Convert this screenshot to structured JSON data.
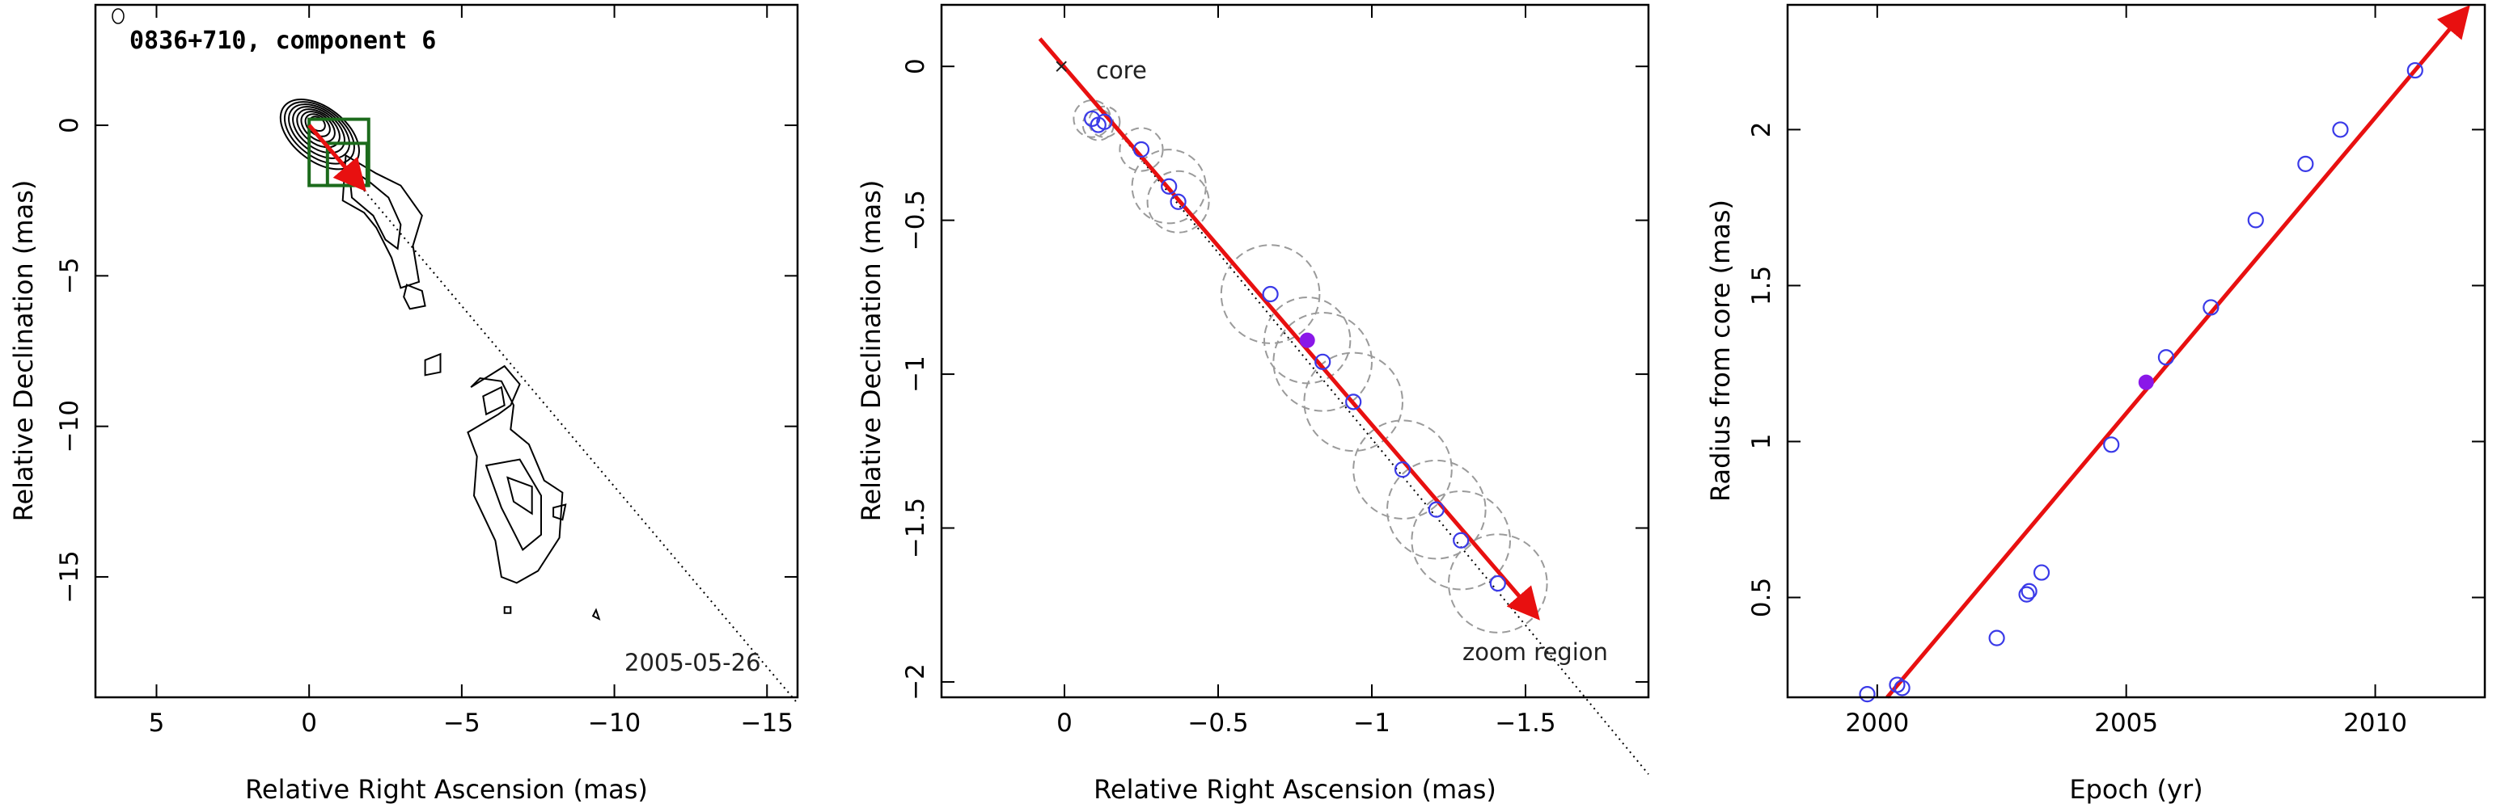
{
  "colors": {
    "fit_arrow": "#e81010",
    "open_point": "#3a3ae8",
    "filled_point": "#8a18e8",
    "component_box": "#1c6b1c",
    "ring": "#9a9a9a"
  },
  "chart_data": [
    {
      "type": "contour",
      "title": "0836+710, component 6",
      "xlabel": "Relative Right Ascension (mas)",
      "ylabel": "Relative Declination (mas)",
      "xlim": [
        7,
        -16
      ],
      "ylim": [
        -19,
        4
      ],
      "x_ticks": [
        5,
        0,
        -5,
        -10,
        -15
      ],
      "y_ticks": [
        0,
        -5,
        -10,
        -15
      ],
      "x_tick_labels": [
        "5",
        "0",
        "−5",
        "−10",
        "−15"
      ],
      "y_tick_labels": [
        "0",
        "−5",
        "−10",
        "−15"
      ],
      "annotations": [
        "2005-05-26"
      ],
      "trajectory_line": {
        "from": [
          0,
          0
        ],
        "to": [
          -16,
          -19.2
        ]
      },
      "fit_arrow": {
        "from": [
          0,
          0
        ],
        "to": [
          -1.7,
          -2.0
        ]
      },
      "zoom_box": {
        "x": [
          0,
          -1.95
        ],
        "y": [
          0.2,
          -2.0
        ]
      },
      "component_box": {
        "x": [
          -0.6,
          -1.9
        ],
        "y": [
          -0.6,
          -2.0
        ]
      },
      "jet_contours": [
        [
          [
            -1.2,
            -1.0
          ],
          [
            -2.2,
            -1.6
          ],
          [
            -3.0,
            -2.0
          ],
          [
            -3.7,
            -3.0
          ],
          [
            -3.4,
            -4.0
          ],
          [
            -3.6,
            -5.2
          ],
          [
            -3.0,
            -5.4
          ],
          [
            -2.7,
            -4.4
          ],
          [
            -2.2,
            -3.4
          ],
          [
            -1.8,
            -2.9
          ],
          [
            -1.1,
            -2.5
          ]
        ],
        [
          [
            -1.3,
            -1.4
          ],
          [
            -2.0,
            -1.9
          ],
          [
            -2.6,
            -2.4
          ],
          [
            -3.0,
            -3.3
          ],
          [
            -2.9,
            -4.1
          ],
          [
            -2.5,
            -3.8
          ],
          [
            -2.1,
            -3.0
          ],
          [
            -1.4,
            -2.4
          ]
        ],
        [
          [
            -3.2,
            -5.3
          ],
          [
            -3.7,
            -5.5
          ],
          [
            -3.8,
            -6.0
          ],
          [
            -3.3,
            -6.1
          ],
          [
            -3.1,
            -5.7
          ]
        ],
        [
          [
            -5.3,
            -8.7
          ],
          [
            -6.4,
            -8.0
          ],
          [
            -6.9,
            -8.6
          ],
          [
            -6.6,
            -9.3
          ],
          [
            -6.2,
            -9.6
          ],
          [
            -5.2,
            -10.2
          ],
          [
            -5.5,
            -11.0
          ],
          [
            -5.4,
            -12.3
          ],
          [
            -6.1,
            -13.8
          ],
          [
            -6.3,
            -15.0
          ],
          [
            -6.8,
            -15.2
          ],
          [
            -7.5,
            -14.8
          ],
          [
            -8.2,
            -13.7
          ],
          [
            -8.3,
            -12.2
          ],
          [
            -7.7,
            -11.8
          ],
          [
            -7.2,
            -10.6
          ],
          [
            -6.6,
            -10.1
          ],
          [
            -6.7,
            -9.3
          ],
          [
            -6.3,
            -8.5
          ],
          [
            -5.6,
            -8.4
          ]
        ],
        [
          [
            -5.7,
            -9.0
          ],
          [
            -6.3,
            -8.7
          ],
          [
            -6.4,
            -9.3
          ],
          [
            -5.8,
            -9.6
          ]
        ],
        [
          [
            -5.8,
            -11.3
          ],
          [
            -6.9,
            -11.1
          ],
          [
            -7.6,
            -12.3
          ],
          [
            -7.6,
            -13.6
          ],
          [
            -7.0,
            -14.1
          ],
          [
            -6.3,
            -12.7
          ]
        ],
        [
          [
            -6.5,
            -11.7
          ],
          [
            -7.3,
            -12.0
          ],
          [
            -7.3,
            -12.9
          ],
          [
            -6.7,
            -12.5
          ]
        ],
        [
          [
            -3.8,
            -7.8
          ],
          [
            -4.3,
            -7.6
          ],
          [
            -4.3,
            -8.2
          ],
          [
            -3.8,
            -8.3
          ]
        ],
        [
          [
            -8.0,
            -12.7
          ],
          [
            -8.4,
            -12.6
          ],
          [
            -8.3,
            -13.1
          ],
          [
            -8.0,
            -13.0
          ]
        ],
        [
          [
            -6.4,
            -16.2
          ],
          [
            -6.6,
            -16.2
          ],
          [
            -6.6,
            -16.0
          ],
          [
            -6.4,
            -16.0
          ]
        ],
        [
          [
            -9.3,
            -16.3
          ],
          [
            -9.5,
            -16.4
          ],
          [
            -9.4,
            -16.1
          ]
        ]
      ]
    },
    {
      "type": "scatter",
      "xlabel": "Relative Right Ascension (mas)",
      "ylabel": "Relative Declination (mas)",
      "xlim": [
        0.4,
        -1.9
      ],
      "ylim": [
        -2.05,
        0.2
      ],
      "x_ticks": [
        0,
        -0.5,
        -1,
        -1.5
      ],
      "y_ticks": [
        0,
        -0.5,
        -1,
        -1.5,
        -2
      ],
      "x_tick_labels": [
        "0",
        "−0.5",
        "−1",
        "−1.5"
      ],
      "y_tick_labels": [
        "0",
        "−0.5",
        "−1",
        "−1.5",
        "−2"
      ],
      "annotations": [
        "core",
        "zoom region"
      ],
      "core_marker": [
        0.01,
        0.0
      ],
      "trajectory_line": {
        "from": [
          0.0,
          0.0
        ],
        "to": [
          -1.9,
          -2.3
        ]
      },
      "fit_arrow": {
        "from": [
          0.08,
          0.09
        ],
        "to": [
          -1.53,
          -1.78
        ]
      },
      "points": [
        {
          "x": -0.09,
          "y": -0.17,
          "r": 0.06
        },
        {
          "x": -0.11,
          "y": -0.19,
          "r": 0.05
        },
        {
          "x": -0.13,
          "y": -0.18,
          "r": 0.05
        },
        {
          "x": -0.25,
          "y": -0.27,
          "r": 0.07
        },
        {
          "x": -0.34,
          "y": -0.39,
          "r": 0.12
        },
        {
          "x": -0.37,
          "y": -0.44,
          "r": 0.1
        },
        {
          "x": -0.67,
          "y": -0.74,
          "r": 0.16
        },
        {
          "x": -0.84,
          "y": -0.96,
          "r": 0.16
        },
        {
          "x": -0.94,
          "y": -1.09,
          "r": 0.16
        },
        {
          "x": -1.1,
          "y": -1.31,
          "r": 0.16
        },
        {
          "x": -1.21,
          "y": -1.44,
          "r": 0.16
        },
        {
          "x": -1.29,
          "y": -1.54,
          "r": 0.16
        },
        {
          "x": -1.41,
          "y": -1.68,
          "r": 0.16
        }
      ],
      "highlight_point": {
        "x": -0.79,
        "y": -0.89,
        "r": 0.14
      }
    },
    {
      "type": "scatter",
      "xlabel": "Epoch (yr)",
      "ylabel": "Radius from core (mas)",
      "xlim": [
        1998.2,
        2012.2
      ],
      "ylim": [
        0.18,
        2.4
      ],
      "x_ticks": [
        2000,
        2005,
        2010
      ],
      "y_ticks": [
        0.5,
        1,
        1.5,
        2
      ],
      "x_tick_labels": [
        "2000",
        "2005",
        "2010"
      ],
      "y_tick_labels": [
        "0.5",
        "1",
        "1.5",
        "2"
      ],
      "fit_arrow": {
        "from": [
          2000.2,
          0.17
        ],
        "to": [
          2011.8,
          2.38
        ]
      },
      "points": [
        {
          "x": 1999.8,
          "y": 0.19
        },
        {
          "x": 2000.4,
          "y": 0.22
        },
        {
          "x": 2000.5,
          "y": 0.21
        },
        {
          "x": 2002.4,
          "y": 0.37
        },
        {
          "x": 2003.0,
          "y": 0.51
        },
        {
          "x": 2003.05,
          "y": 0.52
        },
        {
          "x": 2003.3,
          "y": 0.58
        },
        {
          "x": 2004.7,
          "y": 0.99
        },
        {
          "x": 2005.8,
          "y": 1.27
        },
        {
          "x": 2006.7,
          "y": 1.43
        },
        {
          "x": 2007.6,
          "y": 1.71
        },
        {
          "x": 2008.6,
          "y": 1.89
        },
        {
          "x": 2009.3,
          "y": 2.0
        },
        {
          "x": 2010.8,
          "y": 2.19
        }
      ],
      "highlight_point": {
        "x": 2005.4,
        "y": 1.19
      }
    }
  ]
}
